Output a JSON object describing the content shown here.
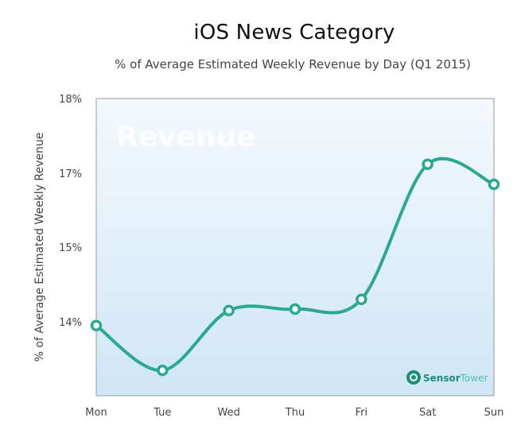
{
  "chart_data": {
    "type": "line",
    "title": "iOS News Category",
    "subtitle": "% of Average Estimated Weekly Revenue by Day (Q1 2015)",
    "xlabel": "",
    "ylabel": "% of Average Estimated Weekly Revenue",
    "categories": [
      "Mon",
      "Tue",
      "Wed",
      "Thu",
      "Fri",
      "Sat",
      "Sun"
    ],
    "series": [
      {
        "values": [
          13.95,
          13.35,
          14.15,
          14.17,
          14.3,
          17.12,
          16.7
        ]
      }
    ],
    "y_ticks": [
      "18%",
      "17%",
      "15%",
      "14%"
    ],
    "watermark": "Revenue",
    "logo": {
      "text_a": "Sensor",
      "text_b": "Tower"
    },
    "grid": false,
    "legend": "none",
    "colors": {
      "line": "#2aa891",
      "plot_top": "#f4f9fd",
      "plot_bottom": "#cfe6f6",
      "axis": "#9a9a9a",
      "logo_a": "#1a8f78",
      "logo_b": "#4cc3a6"
    }
  }
}
